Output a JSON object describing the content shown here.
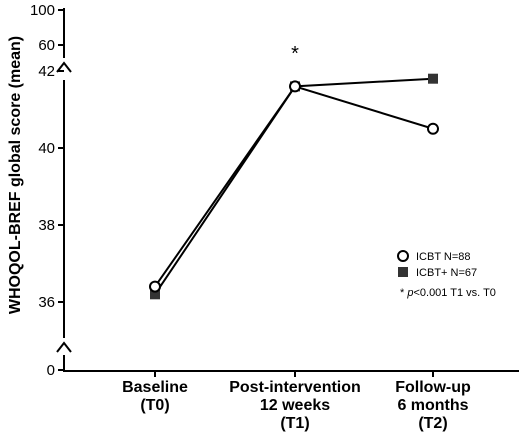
{
  "chart_data": {
    "type": "line",
    "ylabel": "WHOQOL-BREF global score (mean)",
    "categories": [
      [
        "Baseline",
        "(T0)"
      ],
      [
        "Post-intervention",
        "12 weeks",
        "(T1)"
      ],
      [
        "Follow-up",
        "6 months",
        "(T2)"
      ]
    ],
    "y_ticks_upper": [
      "100",
      "60"
    ],
    "y_ticks_main": [
      "42",
      "40",
      "38",
      "36"
    ],
    "y_ticks_lower": [
      "0"
    ],
    "y_axis_break": true,
    "main_ylim": [
      35.1,
      42
    ],
    "series": [
      {
        "name": "ICBT N=88",
        "marker": "circle-open",
        "values": [
          36.4,
          41.6,
          40.5
        ]
      },
      {
        "name": "ICBT+ N=67",
        "marker": "square-filled",
        "values": [
          36.2,
          41.6,
          41.8
        ]
      }
    ],
    "significance_marker": "*",
    "significance_category_index": 1,
    "footnote": {
      "symbol": "*",
      "p": "p",
      "text": "<0.001 T1 vs. T0"
    }
  }
}
